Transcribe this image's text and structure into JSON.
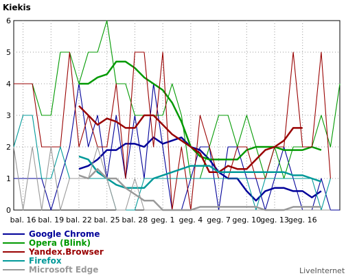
{
  "chart_data": {
    "type": "line",
    "title": "Kiekis",
    "xlabel": "",
    "ylabel": "",
    "ylim": [
      0,
      6
    ],
    "yticks": [
      "0",
      "1",
      "2",
      "3",
      "4",
      "5",
      "6"
    ],
    "xtick_labels": [
      "bal. 16",
      "bal. 19",
      "bal. 22",
      "bal. 25",
      "bal. 28",
      "geg. 1",
      "geg. 4",
      "geg. 7",
      "geg. 10",
      "geg. 13",
      "geg. 16"
    ],
    "grid": true,
    "legend_position": "bottom-left",
    "credit": "LiveInternet",
    "series": [
      {
        "name": "Google Chrome",
        "color": "#000099",
        "style": "raw",
        "values": [
          1,
          1,
          1,
          1,
          0,
          1,
          2,
          4,
          2,
          3,
          1,
          3,
          1,
          3,
          1,
          4,
          2,
          0,
          0,
          1,
          2,
          2,
          0,
          2,
          2,
          1,
          1,
          0,
          1,
          2,
          1,
          0,
          0,
          1,
          0,
          0,
          1
        ]
      },
      {
        "name": "Google Chrome",
        "color": "#000099",
        "style": "smooth",
        "values": [
          null,
          null,
          null,
          null,
          null,
          null,
          null,
          1.3,
          1.4,
          1.6,
          1.9,
          1.9,
          2.1,
          2.1,
          2.0,
          2.3,
          2.1,
          2.2,
          2.3,
          2.0,
          1.9,
          1.6,
          1.2,
          1.0,
          1.0,
          0.6,
          0.3,
          0.6,
          0.7,
          0.7,
          0.6,
          0.6,
          0.4,
          0.6
        ]
      },
      {
        "name": "Opera (Blink)",
        "color": "#009900",
        "style": "raw",
        "values": [
          4,
          4,
          4,
          3,
          3,
          5,
          5,
          4,
          5,
          5,
          6,
          4,
          4,
          3,
          3,
          3,
          3,
          4,
          3,
          1,
          1,
          2,
          3,
          3,
          2,
          3,
          2,
          1,
          2,
          1,
          2,
          2,
          2,
          3,
          2,
          4,
          0
        ]
      },
      {
        "name": "Opera (Blink)",
        "color": "#009900",
        "style": "smooth",
        "values": [
          null,
          null,
          null,
          null,
          null,
          null,
          null,
          4.0,
          4.0,
          4.2,
          4.3,
          4.7,
          4.7,
          4.5,
          4.2,
          4.0,
          3.8,
          3.4,
          2.8,
          2.0,
          1.7,
          1.6,
          1.6,
          1.6,
          1.6,
          1.9,
          2.0,
          2.0,
          2.0,
          1.9,
          1.9,
          1.9,
          2.0,
          1.9
        ]
      },
      {
        "name": "Yandex.Browser",
        "color": "#990000",
        "style": "raw",
        "values": [
          4,
          4,
          4,
          2,
          2,
          2,
          5,
          2,
          3,
          2,
          2,
          4,
          1,
          5,
          5,
          2,
          5,
          0,
          2,
          0,
          3,
          2,
          1,
          1,
          2,
          2,
          1,
          1,
          2,
          2,
          5,
          2,
          2,
          5,
          1
        ]
      },
      {
        "name": "Yandex.Browser",
        "color": "#990000",
        "style": "smooth",
        "values": [
          null,
          null,
          null,
          null,
          null,
          null,
          null,
          3.3,
          3.0,
          2.7,
          2.9,
          2.8,
          2.6,
          2.6,
          3.0,
          3.0,
          2.7,
          2.4,
          2.2,
          2.0,
          1.8,
          1.2,
          1.2,
          1.4,
          1.3,
          1.3,
          1.6,
          1.9,
          2.0,
          2.2,
          2.6,
          2.6
        ]
      },
      {
        "name": "Firefox",
        "color": "#009999",
        "style": "raw",
        "values": [
          2,
          3,
          3,
          1,
          1,
          2,
          1,
          1,
          1,
          1,
          1,
          0,
          0,
          0,
          1,
          1,
          1,
          1,
          1,
          1,
          1,
          1,
          1,
          1,
          1,
          1,
          0,
          1,
          1,
          1,
          1,
          1,
          1,
          0,
          1
        ]
      },
      {
        "name": "Firefox",
        "color": "#009999",
        "style": "smooth",
        "values": [
          null,
          null,
          null,
          null,
          null,
          null,
          null,
          1.7,
          1.6,
          1.2,
          1.0,
          0.8,
          0.7,
          0.7,
          0.7,
          1.0,
          1.1,
          1.2,
          1.3,
          1.4,
          1.4,
          1.4,
          1.2,
          1.2,
          1.2,
          1.2,
          1.2,
          1.2,
          1.2,
          1.2,
          1.1,
          1.1,
          1.0,
          0.9
        ]
      },
      {
        "name": "Microsoft Edge",
        "color": "#999999",
        "style": "raw",
        "values": [
          2,
          0,
          2,
          0,
          2,
          0,
          1,
          1,
          1,
          2,
          1,
          0,
          0,
          1,
          0,
          0,
          0,
          0,
          0,
          0,
          0,
          0,
          0,
          0,
          0,
          0,
          0,
          0,
          0,
          0,
          0,
          0,
          0,
          0,
          0
        ]
      },
      {
        "name": "Microsoft Edge",
        "color": "#999999",
        "style": "smooth",
        "values": [
          null,
          null,
          null,
          null,
          null,
          null,
          null,
          1.1,
          1.0,
          1.3,
          1.0,
          1.0,
          0.7,
          0.5,
          0.3,
          0.3,
          0.0,
          0.0,
          0.0,
          0.0,
          0.1,
          0.1,
          0.1,
          0.1,
          0.1,
          0.1,
          0.1,
          0.0,
          0.0,
          0.0,
          0.1,
          0.1,
          0.1,
          0.1
        ]
      }
    ]
  },
  "legend": [
    {
      "label": "Google Chrome",
      "color": "#000099"
    },
    {
      "label": "Opera (Blink)",
      "color": "#009900"
    },
    {
      "label": "Yandex.Browser",
      "color": "#990000"
    },
    {
      "label": "Firefox",
      "color": "#009999"
    },
    {
      "label": "Microsoft Edge",
      "color": "#999999"
    }
  ]
}
